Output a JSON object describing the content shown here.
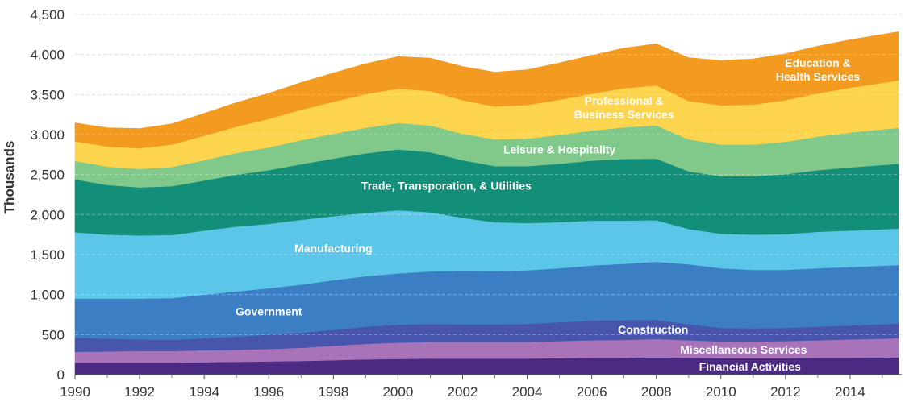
{
  "chart_data": {
    "type": "area",
    "stacked": true,
    "ylabel": "Thousands",
    "xlabel": "",
    "xlim": [
      1990,
      2015.6
    ],
    "ylim": [
      0,
      4500
    ],
    "x_ticks": [
      "1990",
      "1992",
      "1994",
      "1996",
      "1998",
      "2000",
      "2002",
      "2004",
      "2006",
      "2008",
      "2010",
      "2012",
      "2014"
    ],
    "y_ticks": [
      "0",
      "500",
      "1,000",
      "1,500",
      "2,000",
      "2,500",
      "3,000",
      "3,500",
      "4,000",
      "4,500"
    ],
    "grid": "horizontal dashed",
    "x": [
      1990,
      1991,
      1992,
      1993,
      1994,
      1995,
      1996,
      1997,
      1998,
      1999,
      2000,
      2001,
      2002,
      2003,
      2004,
      2005,
      2006,
      2007,
      2008,
      2009,
      2010,
      2011,
      2012,
      2013,
      2014,
      2015.5
    ],
    "series": [
      {
        "name": "Financial Activities",
        "color": "#4a2a82",
        "values": [
          150,
          150,
          150,
          150,
          155,
          160,
          165,
          170,
          180,
          190,
          195,
          200,
          200,
          200,
          200,
          205,
          210,
          210,
          215,
          210,
          205,
          205,
          205,
          210,
          210,
          215
        ]
      },
      {
        "name": "Miscellaneous Services",
        "color": "#a873b8",
        "values": [
          135,
          140,
          145,
          145,
          150,
          150,
          155,
          165,
          180,
          195,
          205,
          210,
          210,
          210,
          210,
          215,
          220,
          225,
          230,
          220,
          210,
          210,
          215,
          220,
          230,
          240
        ]
      },
      {
        "name": "Construction",
        "color": "#4855ad",
        "values": [
          175,
          160,
          145,
          140,
          150,
          165,
          180,
          190,
          200,
          215,
          225,
          225,
          220,
          220,
          225,
          235,
          245,
          245,
          240,
          200,
          170,
          165,
          165,
          170,
          175,
          185
        ]
      },
      {
        "name": "Government",
        "color": "#3c7ec4",
        "values": [
          490,
          500,
          510,
          520,
          545,
          565,
          580,
          600,
          620,
          630,
          640,
          655,
          670,
          665,
          670,
          675,
          690,
          705,
          725,
          750,
          745,
          730,
          725,
          730,
          730,
          730
        ]
      },
      {
        "name": "Manufacturing",
        "color": "#5cc6e8",
        "values": [
          830,
          800,
          790,
          790,
          800,
          810,
          805,
          810,
          800,
          790,
          790,
          740,
          660,
          610,
          590,
          575,
          560,
          540,
          520,
          440,
          430,
          440,
          445,
          455,
          455,
          455
        ]
      },
      {
        "name": "Trade, Transporation, & Utilities",
        "color": "#138e79",
        "values": [
          660,
          620,
          600,
          610,
          625,
          650,
          670,
          695,
          720,
          745,
          760,
          750,
          720,
          700,
          710,
          730,
          750,
          770,
          770,
          720,
          720,
          730,
          750,
          770,
          790,
          810
        ]
      },
      {
        "name": "Leisure & Hospitality",
        "color": "#80c98a",
        "values": [
          230,
          230,
          230,
          240,
          255,
          270,
          285,
          300,
          310,
          320,
          330,
          335,
          330,
          335,
          345,
          360,
          375,
          395,
          415,
          400,
          395,
          395,
          405,
          420,
          435,
          450
        ]
      },
      {
        "name": "Professional & Business Services",
        "color": "#fcd44e",
        "values": [
          245,
          250,
          260,
          280,
          305,
          330,
          355,
          380,
          400,
          420,
          430,
          430,
          420,
          410,
          420,
          440,
          460,
          490,
          500,
          480,
          490,
          500,
          520,
          540,
          560,
          590
        ]
      },
      {
        "name": "Education & Health Services",
        "color": "#f39a21",
        "values": [
          230,
          235,
          245,
          260,
          280,
          300,
          320,
          340,
          360,
          380,
          400,
          410,
          420,
          430,
          440,
          460,
          480,
          500,
          520,
          540,
          560,
          570,
          580,
          590,
          600,
          610
        ]
      }
    ],
    "annotations": [
      {
        "text": "Education &",
        "lines": [
          "Education &",
          "Health Services"
        ]
      },
      {
        "text": "Professional & Business Services",
        "lines": [
          "Professional &",
          "Business Services"
        ]
      }
    ]
  }
}
